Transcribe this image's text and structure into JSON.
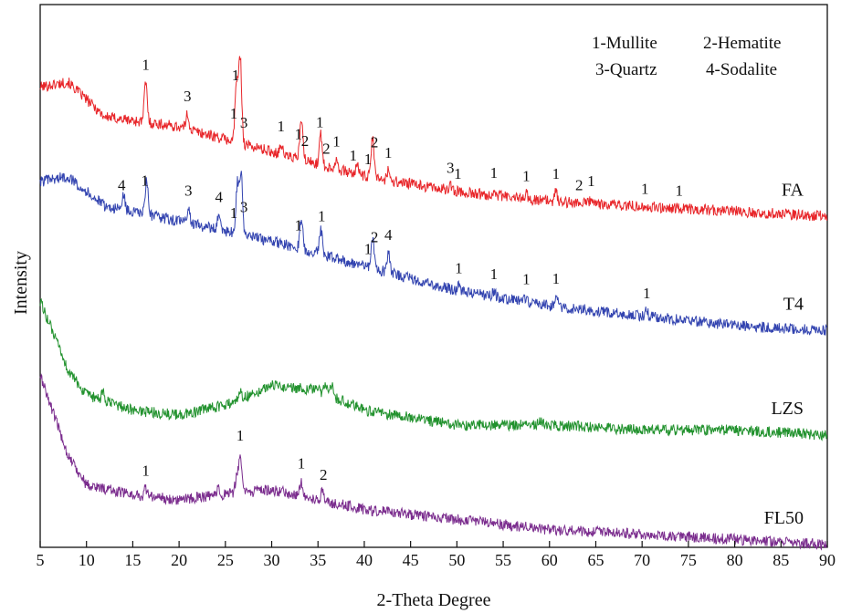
{
  "chart_data": {
    "type": "line",
    "xlabel": "2-Theta Degree",
    "ylabel": "Intensity",
    "xlim": [
      5,
      90
    ],
    "xticks": [
      5,
      10,
      15,
      20,
      25,
      30,
      35,
      40,
      45,
      50,
      55,
      60,
      65,
      70,
      75,
      80,
      85,
      90
    ],
    "grid": false,
    "legend": {
      "placement": "top-right",
      "entries": [
        "1-Mullite",
        "2-Hematite",
        "3-Quartz",
        "4-Sodalite"
      ]
    },
    "series": [
      {
        "name": "FA",
        "color": "#e8262a",
        "baseline": [
          [
            5,
            0.88
          ],
          [
            8,
            0.89
          ],
          [
            12,
            0.82
          ],
          [
            20,
            0.8
          ],
          [
            30,
            0.75
          ],
          [
            40,
            0.7
          ],
          [
            50,
            0.67
          ],
          [
            60,
            0.65
          ],
          [
            70,
            0.64
          ],
          [
            80,
            0.63
          ],
          [
            90,
            0.62
          ]
        ],
        "peaks": [
          [
            16.4,
            0.08
          ],
          [
            20.9,
            0.03
          ],
          [
            26.2,
            0.12
          ],
          [
            26.6,
            0.17
          ],
          [
            31.0,
            0.02
          ],
          [
            33.2,
            0.08
          ],
          [
            35.3,
            0.06
          ],
          [
            37.0,
            0.02
          ],
          [
            39.3,
            0.02
          ],
          [
            40.9,
            0.08
          ],
          [
            42.6,
            0.02
          ],
          [
            49.3,
            0.01
          ],
          [
            54.0,
            0.01
          ],
          [
            57.5,
            0.01
          ],
          [
            60.7,
            0.02
          ],
          [
            64.5,
            0.01
          ]
        ],
        "annotations": [
          [
            16.4,
            "1"
          ],
          [
            20.9,
            "3"
          ],
          [
            25.9,
            "1"
          ],
          [
            26.1,
            "1"
          ],
          [
            27.0,
            "3"
          ],
          [
            31.0,
            "1"
          ],
          [
            32.9,
            "1"
          ],
          [
            33.6,
            "2"
          ],
          [
            35.2,
            "1"
          ],
          [
            35.9,
            "2"
          ],
          [
            37.0,
            "1"
          ],
          [
            38.8,
            "1"
          ],
          [
            40.4,
            "1"
          ],
          [
            41.1,
            "2"
          ],
          [
            42.6,
            "1"
          ],
          [
            49.3,
            "3"
          ],
          [
            50.1,
            "1"
          ],
          [
            54.0,
            "1"
          ],
          [
            57.5,
            "1"
          ],
          [
            60.7,
            "1"
          ],
          [
            63.2,
            "2"
          ],
          [
            64.5,
            "1"
          ],
          [
            70.3,
            "1"
          ],
          [
            74.0,
            "1"
          ]
        ]
      },
      {
        "name": "T4",
        "color": "#3344b0",
        "baseline": [
          [
            5,
            0.69
          ],
          [
            8,
            0.7
          ],
          [
            12,
            0.64
          ],
          [
            20,
            0.61
          ],
          [
            30,
            0.57
          ],
          [
            40,
            0.52
          ],
          [
            50,
            0.47
          ],
          [
            60,
            0.44
          ],
          [
            70,
            0.42
          ],
          [
            80,
            0.4
          ],
          [
            90,
            0.39
          ]
        ],
        "peaks": [
          [
            14.0,
            0.03
          ],
          [
            16.5,
            0.07
          ],
          [
            21.0,
            0.03
          ],
          [
            24.3,
            0.03
          ],
          [
            26.3,
            0.1
          ],
          [
            26.7,
            0.12
          ],
          [
            33.2,
            0.06
          ],
          [
            35.3,
            0.05
          ],
          [
            40.9,
            0.06
          ],
          [
            42.6,
            0.04
          ],
          [
            50.2,
            0.01
          ],
          [
            54.0,
            0.01
          ],
          [
            57.5,
            0.01
          ],
          [
            60.7,
            0.02
          ],
          [
            70.5,
            0.01
          ]
        ],
        "annotations": [
          [
            13.8,
            "4"
          ],
          [
            16.3,
            "1"
          ],
          [
            21.0,
            "3"
          ],
          [
            24.3,
            "4"
          ],
          [
            25.9,
            "1"
          ],
          [
            27.0,
            "3"
          ],
          [
            32.9,
            "1"
          ],
          [
            35.4,
            "1"
          ],
          [
            40.4,
            "1"
          ],
          [
            41.1,
            "2"
          ],
          [
            42.6,
            "4"
          ],
          [
            50.2,
            "1"
          ],
          [
            54.0,
            "1"
          ],
          [
            57.5,
            "1"
          ],
          [
            60.7,
            "1"
          ],
          [
            70.5,
            "1"
          ]
        ]
      },
      {
        "name": "LZS",
        "color": "#22922e",
        "baseline": [
          [
            5,
            0.45
          ],
          [
            8,
            0.31
          ],
          [
            10,
            0.26
          ],
          [
            15,
            0.23
          ],
          [
            20,
            0.22
          ],
          [
            25,
            0.24
          ],
          [
            30,
            0.28
          ],
          [
            35,
            0.27
          ],
          [
            40,
            0.23
          ],
          [
            50,
            0.2
          ],
          [
            60,
            0.2
          ],
          [
            70,
            0.19
          ],
          [
            80,
            0.19
          ],
          [
            90,
            0.18
          ]
        ],
        "peaks": [
          [
            11.8,
            0.015
          ],
          [
            26.6,
            0.015
          ],
          [
            35.8,
            0.015
          ],
          [
            36.5,
            0.02
          ],
          [
            59.0,
            0.01
          ]
        ],
        "annotations": []
      },
      {
        "name": "FL50",
        "color": "#7b2d8e",
        "baseline": [
          [
            5,
            0.3
          ],
          [
            8,
            0.14
          ],
          [
            10,
            0.08
          ],
          [
            15,
            0.06
          ],
          [
            20,
            0.05
          ],
          [
            25,
            0.06
          ],
          [
            30,
            0.07
          ],
          [
            35,
            0.05
          ],
          [
            40,
            0.03
          ],
          [
            50,
            0.01
          ],
          [
            60,
            -0.01
          ],
          [
            70,
            -0.02
          ],
          [
            80,
            -0.03
          ],
          [
            90,
            -0.04
          ]
        ],
        "peaks": [
          [
            16.4,
            0.015
          ],
          [
            24.3,
            0.015
          ],
          [
            26.2,
            0.03
          ],
          [
            26.6,
            0.08
          ],
          [
            33.2,
            0.03
          ],
          [
            35.5,
            0.02
          ]
        ],
        "annotations": [
          [
            16.4,
            "1"
          ],
          [
            26.6,
            "1"
          ],
          [
            33.2,
            "1"
          ],
          [
            35.6,
            "2"
          ]
        ]
      }
    ]
  }
}
